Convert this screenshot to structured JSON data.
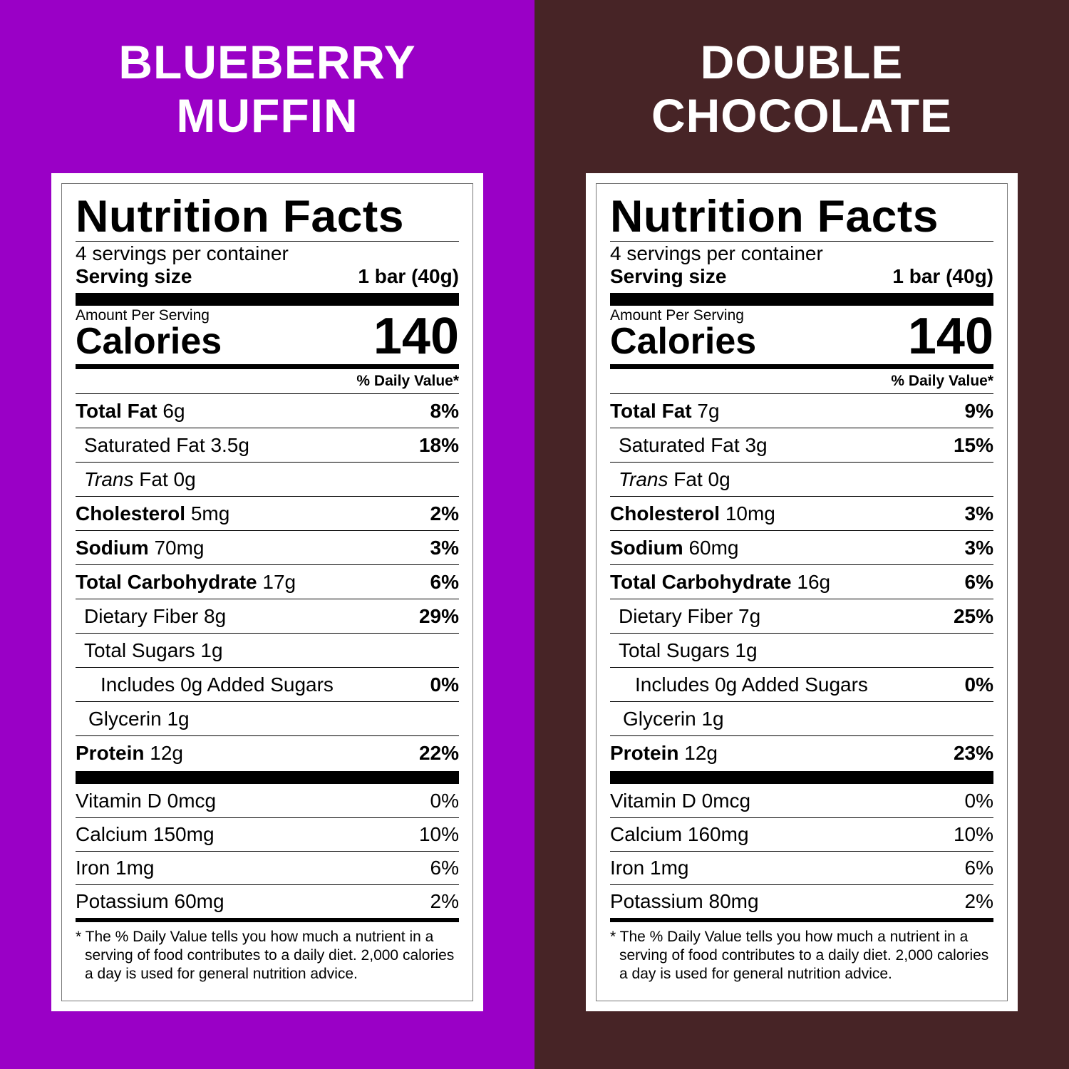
{
  "products": [
    {
      "background": "#9a00c6",
      "heading": [
        "BLUEBERRY",
        "MUFFIN"
      ],
      "label": {
        "title": "Nutrition Facts",
        "servings": "4 servings per container",
        "serving_size_label": "Serving size",
        "serving_size_value": "1 bar (40g)",
        "amount_per_serving": "Amount Per Serving",
        "calories_label": "Calories",
        "calories": "140",
        "dv_header": "% Daily Value*",
        "nutrients": [
          {
            "name": "Total Fat",
            "amount": "6g",
            "dv": "8%",
            "style": "bold",
            "indent": 0
          },
          {
            "name": "Saturated Fat",
            "amount": "3.5g",
            "dv": "18%",
            "style": "regular",
            "indent": 1
          },
          {
            "name": "Trans",
            "amount": "Fat 0g",
            "dv": "",
            "style": "italic",
            "indent": 1
          },
          {
            "name": "Cholesterol",
            "amount": "5mg",
            "dv": "2%",
            "style": "bold",
            "indent": 0
          },
          {
            "name": "Sodium",
            "amount": "70mg",
            "dv": "3%",
            "style": "bold",
            "indent": 0
          },
          {
            "name": "Total Carbohydrate",
            "amount": "17g",
            "dv": "6%",
            "style": "bold",
            "indent": 0
          },
          {
            "name": "Dietary Fiber",
            "amount": "8g",
            "dv": "29%",
            "style": "regular",
            "indent": 1
          },
          {
            "name": "Total Sugars",
            "amount": "1g",
            "dv": "",
            "style": "regular",
            "indent": 1
          },
          {
            "name": "Includes 0g Added Sugars",
            "amount": "",
            "dv": "0%",
            "style": "regular",
            "indent": 3
          },
          {
            "name": "Glycerin",
            "amount": "1g",
            "dv": "",
            "style": "regular",
            "indent": 2
          },
          {
            "name": "Protein",
            "amount": "12g",
            "dv": "22%",
            "style": "bold",
            "indent": 0
          }
        ],
        "vitamins": [
          {
            "name": "Vitamin D 0mcg",
            "dv": "0%"
          },
          {
            "name": "Calcium 150mg",
            "dv": "10%"
          },
          {
            "name": "Iron 1mg",
            "dv": "6%"
          },
          {
            "name": "Potassium 60mg",
            "dv": "2%"
          }
        ],
        "footnote": "* The % Daily Value tells you how much a nutrient in a serving of food contributes to a daily diet. 2,000 calories a day is used for general nutrition advice."
      }
    },
    {
      "background": "#472426",
      "heading": [
        "DOUBLE",
        "CHOCOLATE"
      ],
      "label": {
        "title": "Nutrition Facts",
        "servings": "4 servings per container",
        "serving_size_label": "Serving size",
        "serving_size_value": "1 bar (40g)",
        "amount_per_serving": "Amount Per Serving",
        "calories_label": "Calories",
        "calories": "140",
        "dv_header": "% Daily Value*",
        "nutrients": [
          {
            "name": "Total Fat",
            "amount": "7g",
            "dv": "9%",
            "style": "bold",
            "indent": 0
          },
          {
            "name": "Saturated Fat",
            "amount": "3g",
            "dv": "15%",
            "style": "regular",
            "indent": 1
          },
          {
            "name": "Trans",
            "amount": "Fat 0g",
            "dv": "",
            "style": "italic",
            "indent": 1
          },
          {
            "name": "Cholesterol",
            "amount": "10mg",
            "dv": "3%",
            "style": "bold",
            "indent": 0
          },
          {
            "name": "Sodium",
            "amount": "60mg",
            "dv": "3%",
            "style": "bold",
            "indent": 0
          },
          {
            "name": "Total Carbohydrate",
            "amount": "16g",
            "dv": "6%",
            "style": "bold",
            "indent": 0
          },
          {
            "name": "Dietary Fiber",
            "amount": "7g",
            "dv": "25%",
            "style": "regular",
            "indent": 1
          },
          {
            "name": "Total Sugars",
            "amount": "1g",
            "dv": "",
            "style": "regular",
            "indent": 1
          },
          {
            "name": "Includes 0g Added Sugars",
            "amount": "",
            "dv": "0%",
            "style": "regular",
            "indent": 3
          },
          {
            "name": "Glycerin",
            "amount": "1g",
            "dv": "",
            "style": "regular",
            "indent": 2
          },
          {
            "name": "Protein",
            "amount": "12g",
            "dv": "23%",
            "style": "bold",
            "indent": 0
          }
        ],
        "vitamins": [
          {
            "name": "Vitamin D 0mcg",
            "dv": "0%"
          },
          {
            "name": "Calcium 160mg",
            "dv": "10%"
          },
          {
            "name": "Iron 1mg",
            "dv": "6%"
          },
          {
            "name": "Potassium 80mg",
            "dv": "2%"
          }
        ],
        "footnote": "* The % Daily Value tells you how much a nutrient in a serving of food contributes to a daily diet. 2,000 calories a day is used for general nutrition advice."
      }
    }
  ]
}
